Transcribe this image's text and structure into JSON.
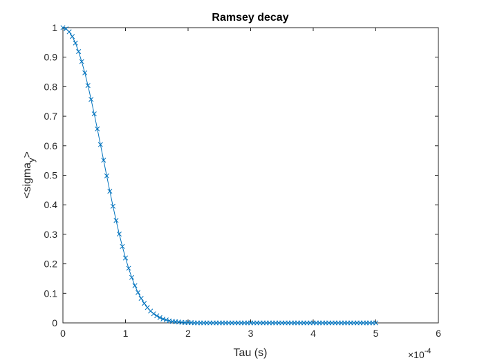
{
  "chart_data": {
    "type": "line",
    "title": "Ramsey decay",
    "xlabel": "Tau (s)",
    "ylabel_main": "<sigma",
    "ylabel_sub": "y",
    "ylabel_tail": ">",
    "x_exponent_base": "×10",
    "x_exponent_power": "-4",
    "xlim": [
      0,
      6
    ],
    "ylim": [
      0,
      1
    ],
    "xticks": [
      0,
      1,
      2,
      3,
      4,
      5,
      6
    ],
    "xtick_labels": [
      "0",
      "1",
      "2",
      "3",
      "4",
      "5",
      "6"
    ],
    "yticks": [
      0,
      0.1,
      0.2,
      0.3,
      0.4,
      0.5,
      0.6,
      0.7,
      0.8,
      0.9,
      1
    ],
    "ytick_labels": [
      "0",
      "0.1",
      "0.2",
      "0.3",
      "0.4",
      "0.5",
      "0.6",
      "0.7",
      "0.8",
      "0.9",
      "1"
    ],
    "grid": false,
    "marker": "x",
    "color": "#0072BD",
    "series": [
      {
        "x": [
          0,
          0.05,
          0.1,
          0.15,
          0.2,
          0.25,
          0.3,
          0.35,
          0.4,
          0.45,
          0.5,
          0.55,
          0.6,
          0.65,
          0.7,
          0.75,
          0.8,
          0.85,
          0.9,
          0.95,
          1,
          1.05,
          1.1,
          1.15,
          1.2,
          1.25,
          1.3,
          1.35,
          1.4,
          1.45,
          1.5,
          1.55,
          1.6,
          1.65,
          1.7,
          1.75,
          1.8,
          1.85,
          1.9,
          1.95,
          2,
          2.05,
          2.1,
          2.15,
          2.2,
          2.25,
          2.3,
          2.35,
          2.4,
          2.45,
          2.5,
          2.55,
          2.6,
          2.65,
          2.7,
          2.75,
          2.8,
          2.85,
          2.9,
          2.95,
          3,
          3.05,
          3.1,
          3.15,
          3.2,
          3.25,
          3.3,
          3.35,
          3.4,
          3.45,
          3.5,
          3.55,
          3.6,
          3.65,
          3.7,
          3.75,
          3.8,
          3.85,
          3.9,
          3.95,
          4,
          4.05,
          4.1,
          4.15,
          4.2,
          4.25,
          4.3,
          4.35,
          4.4,
          4.45,
          4.5,
          4.55,
          4.6,
          4.65,
          4.7,
          4.75,
          4.8,
          4.85,
          4.9,
          4.95,
          5
        ],
        "y": [
          1.0,
          0.996,
          0.986,
          0.97,
          0.948,
          0.919,
          0.885,
          0.847,
          0.804,
          0.757,
          0.708,
          0.657,
          0.604,
          0.551,
          0.498,
          0.446,
          0.395,
          0.347,
          0.301,
          0.259,
          0.22,
          0.185,
          0.154,
          0.126,
          0.103,
          0.083,
          0.066,
          0.052,
          0.04,
          0.031,
          0.024,
          0.018,
          0.013,
          0.01,
          0.007,
          0.005,
          0.004,
          0.003,
          0.002,
          0.001,
          0.001,
          0.001,
          0.0,
          0.0,
          0.0,
          0.0,
          0.0,
          0.0,
          0.0,
          0.0,
          0.0,
          0.0,
          0.0,
          0.0,
          0.0,
          0.0,
          0.0,
          0.0,
          0.0,
          0.0,
          0.0,
          0.0,
          0.0,
          0.0,
          0.0,
          0.0,
          0.0,
          0.0,
          0.0,
          0.0,
          0.0,
          0.0,
          0.0,
          0.0,
          0.0,
          0.0,
          0.0,
          0.0,
          0.0,
          0.0,
          0.0,
          0.0,
          0.0,
          0.0,
          0.0,
          0.0,
          0.0,
          0.0,
          0.0,
          0.0,
          0.0,
          0.0,
          0.0,
          0.0,
          0.0,
          0.0,
          0.0,
          0.0,
          0.0,
          0.0,
          0.0
        ]
      }
    ]
  }
}
